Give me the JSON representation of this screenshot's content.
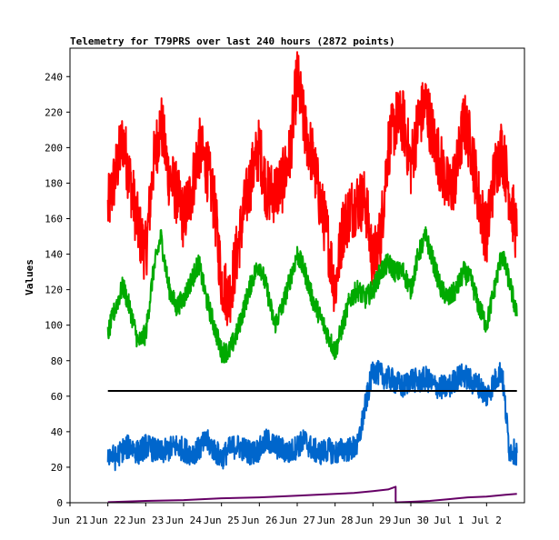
{
  "chart_data": {
    "type": "line",
    "title": "Telemetry for T79PRS over last 240 hours (2872 points)",
    "xlabel": "",
    "ylabel": "Values",
    "xlim": [
      0,
      12
    ],
    "ylim": [
      0,
      256
    ],
    "grid": false,
    "legend": "none",
    "x_tick_labels": [
      "Jun 21",
      "Jun 22",
      "Jun 23",
      "Jun 24",
      "Jun 25",
      "Jun 26",
      "Jun 27",
      "Jun 28",
      "Jun 29",
      "Jun 30",
      "Jul 1",
      "Jul 2"
    ],
    "y_ticks": [
      0,
      20,
      40,
      60,
      80,
      100,
      120,
      140,
      160,
      180,
      200,
      220,
      240
    ],
    "series": [
      {
        "color": "#ff0000",
        "x": [
          1.0,
          1.2,
          1.4,
          1.6,
          1.8,
          2.0,
          2.2,
          2.4,
          2.6,
          2.8,
          3.0,
          3.2,
          3.4,
          3.6,
          3.8,
          4.0,
          4.2,
          4.4,
          4.6,
          4.8,
          5.0,
          5.2,
          5.4,
          5.6,
          5.8,
          6.0,
          6.2,
          6.4,
          6.6,
          6.8,
          7.0,
          7.2,
          7.4,
          7.6,
          7.8,
          8.0,
          8.2,
          8.4,
          8.6,
          8.8,
          9.0,
          9.2,
          9.4,
          9.6,
          9.8,
          10.0,
          10.2,
          10.4,
          10.6,
          10.8,
          11.0,
          11.2,
          11.4,
          11.6,
          11.8
        ],
        "values": [
          165,
          185,
          205,
          180,
          155,
          140,
          190,
          215,
          185,
          175,
          160,
          175,
          200,
          190,
          170,
          125,
          115,
          140,
          165,
          185,
          200,
          175,
          175,
          180,
          195,
          240,
          210,
          195,
          170,
          150,
          120,
          155,
          165,
          170,
          170,
          135,
          150,
          200,
          215,
          215,
          190,
          215,
          225,
          205,
          190,
          175,
          185,
          215,
          200,
          170,
          150,
          185,
          200,
          175,
          150
        ],
        "noise": 18
      },
      {
        "color": "#00aa00",
        "x": [
          1.0,
          1.2,
          1.4,
          1.6,
          1.8,
          2.0,
          2.2,
          2.4,
          2.6,
          2.8,
          3.0,
          3.2,
          3.4,
          3.6,
          3.8,
          4.0,
          4.2,
          4.4,
          4.6,
          4.8,
          5.0,
          5.2,
          5.4,
          5.6,
          5.8,
          6.0,
          6.2,
          6.4,
          6.6,
          6.8,
          7.0,
          7.2,
          7.4,
          7.6,
          7.8,
          8.0,
          8.2,
          8.4,
          8.6,
          8.8,
          9.0,
          9.2,
          9.4,
          9.6,
          9.8,
          10.0,
          10.2,
          10.4,
          10.6,
          10.8,
          11.0,
          11.2,
          11.4,
          11.6,
          11.8
        ],
        "values": [
          95,
          110,
          122,
          108,
          90,
          95,
          130,
          150,
          122,
          110,
          115,
          125,
          135,
          115,
          100,
          85,
          85,
          95,
          110,
          125,
          135,
          120,
          100,
          110,
          125,
          140,
          130,
          115,
          105,
          95,
          85,
          100,
          115,
          120,
          115,
          120,
          130,
          135,
          130,
          130,
          120,
          140,
          150,
          135,
          120,
          115,
          120,
          130,
          125,
          110,
          100,
          120,
          140,
          125,
          105
        ],
        "noise": 6
      },
      {
        "color": "#0066cc",
        "x": [
          1.0,
          1.2,
          1.4,
          1.6,
          1.8,
          2.0,
          2.2,
          2.4,
          2.6,
          2.8,
          3.0,
          3.2,
          3.4,
          3.6,
          3.8,
          4.0,
          4.2,
          4.4,
          4.6,
          4.8,
          5.0,
          5.2,
          5.4,
          5.6,
          5.8,
          6.0,
          6.2,
          6.4,
          6.6,
          6.8,
          7.0,
          7.2,
          7.4,
          7.6,
          7.8,
          8.0,
          8.2,
          8.4,
          8.6,
          8.8,
          9.0,
          9.2,
          9.4,
          9.6,
          9.8,
          10.0,
          10.2,
          10.4,
          10.6,
          10.8,
          11.0,
          11.2,
          11.4,
          11.6,
          11.8
        ],
        "values": [
          28,
          25,
          30,
          32,
          28,
          32,
          30,
          28,
          30,
          32,
          30,
          28,
          30,
          35,
          30,
          25,
          30,
          32,
          30,
          28,
          30,
          35,
          32,
          30,
          28,
          32,
          35,
          30,
          28,
          30,
          28,
          30,
          30,
          32,
          55,
          75,
          72,
          70,
          68,
          65,
          70,
          68,
          70,
          66,
          65,
          65,
          70,
          72,
          68,
          66,
          60,
          68,
          75,
          30,
          28
        ],
        "noise": 7
      },
      {
        "color": "#660066",
        "x": [
          1.0,
          2.0,
          3.0,
          4.0,
          5.0,
          6.0,
          7.0,
          7.5,
          8.0,
          8.4,
          8.6,
          8.6,
          9.0,
          9.5,
          10.0,
          10.5,
          11.0,
          11.5,
          11.8
        ],
        "values": [
          0.3,
          1,
          1.5,
          2.5,
          3,
          4,
          5,
          5.5,
          6.5,
          7.5,
          9,
          0.2,
          0.5,
          1,
          2,
          3,
          3.5,
          4.5,
          5
        ],
        "noise": 0
      },
      {
        "color": "#000000",
        "x": [
          1.0,
          11.8
        ],
        "values": [
          63,
          63
        ],
        "noise": 0
      }
    ]
  }
}
